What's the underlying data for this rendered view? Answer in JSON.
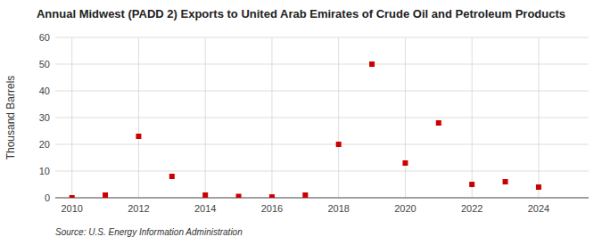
{
  "chart_data": {
    "type": "scatter",
    "title": "Annual Midwest (PADD 2) Exports to United Arab Emirates of Crude Oil and Petroleum Products",
    "ylabel": "Thousand Barrels",
    "source": "Source: U.S. Energy Information Administration",
    "x": [
      2010,
      2011,
      2012,
      2013,
      2014,
      2015,
      2016,
      2017,
      2018,
      2019,
      2020,
      2021,
      2022,
      2023,
      2024
    ],
    "values": [
      0,
      1,
      23,
      8,
      1,
      0.5,
      0.3,
      1,
      20,
      50,
      13,
      28,
      5,
      6,
      4
    ],
    "color": "#cc0000",
    "marker": "square",
    "xlim": [
      2009.5,
      2025.5
    ],
    "ylim": [
      0,
      60
    ],
    "xticks": [
      2010,
      2012,
      2014,
      2016,
      2018,
      2020,
      2022,
      2024
    ],
    "yticks": [
      0,
      10,
      20,
      30,
      40,
      50,
      60
    ],
    "grid": true
  }
}
